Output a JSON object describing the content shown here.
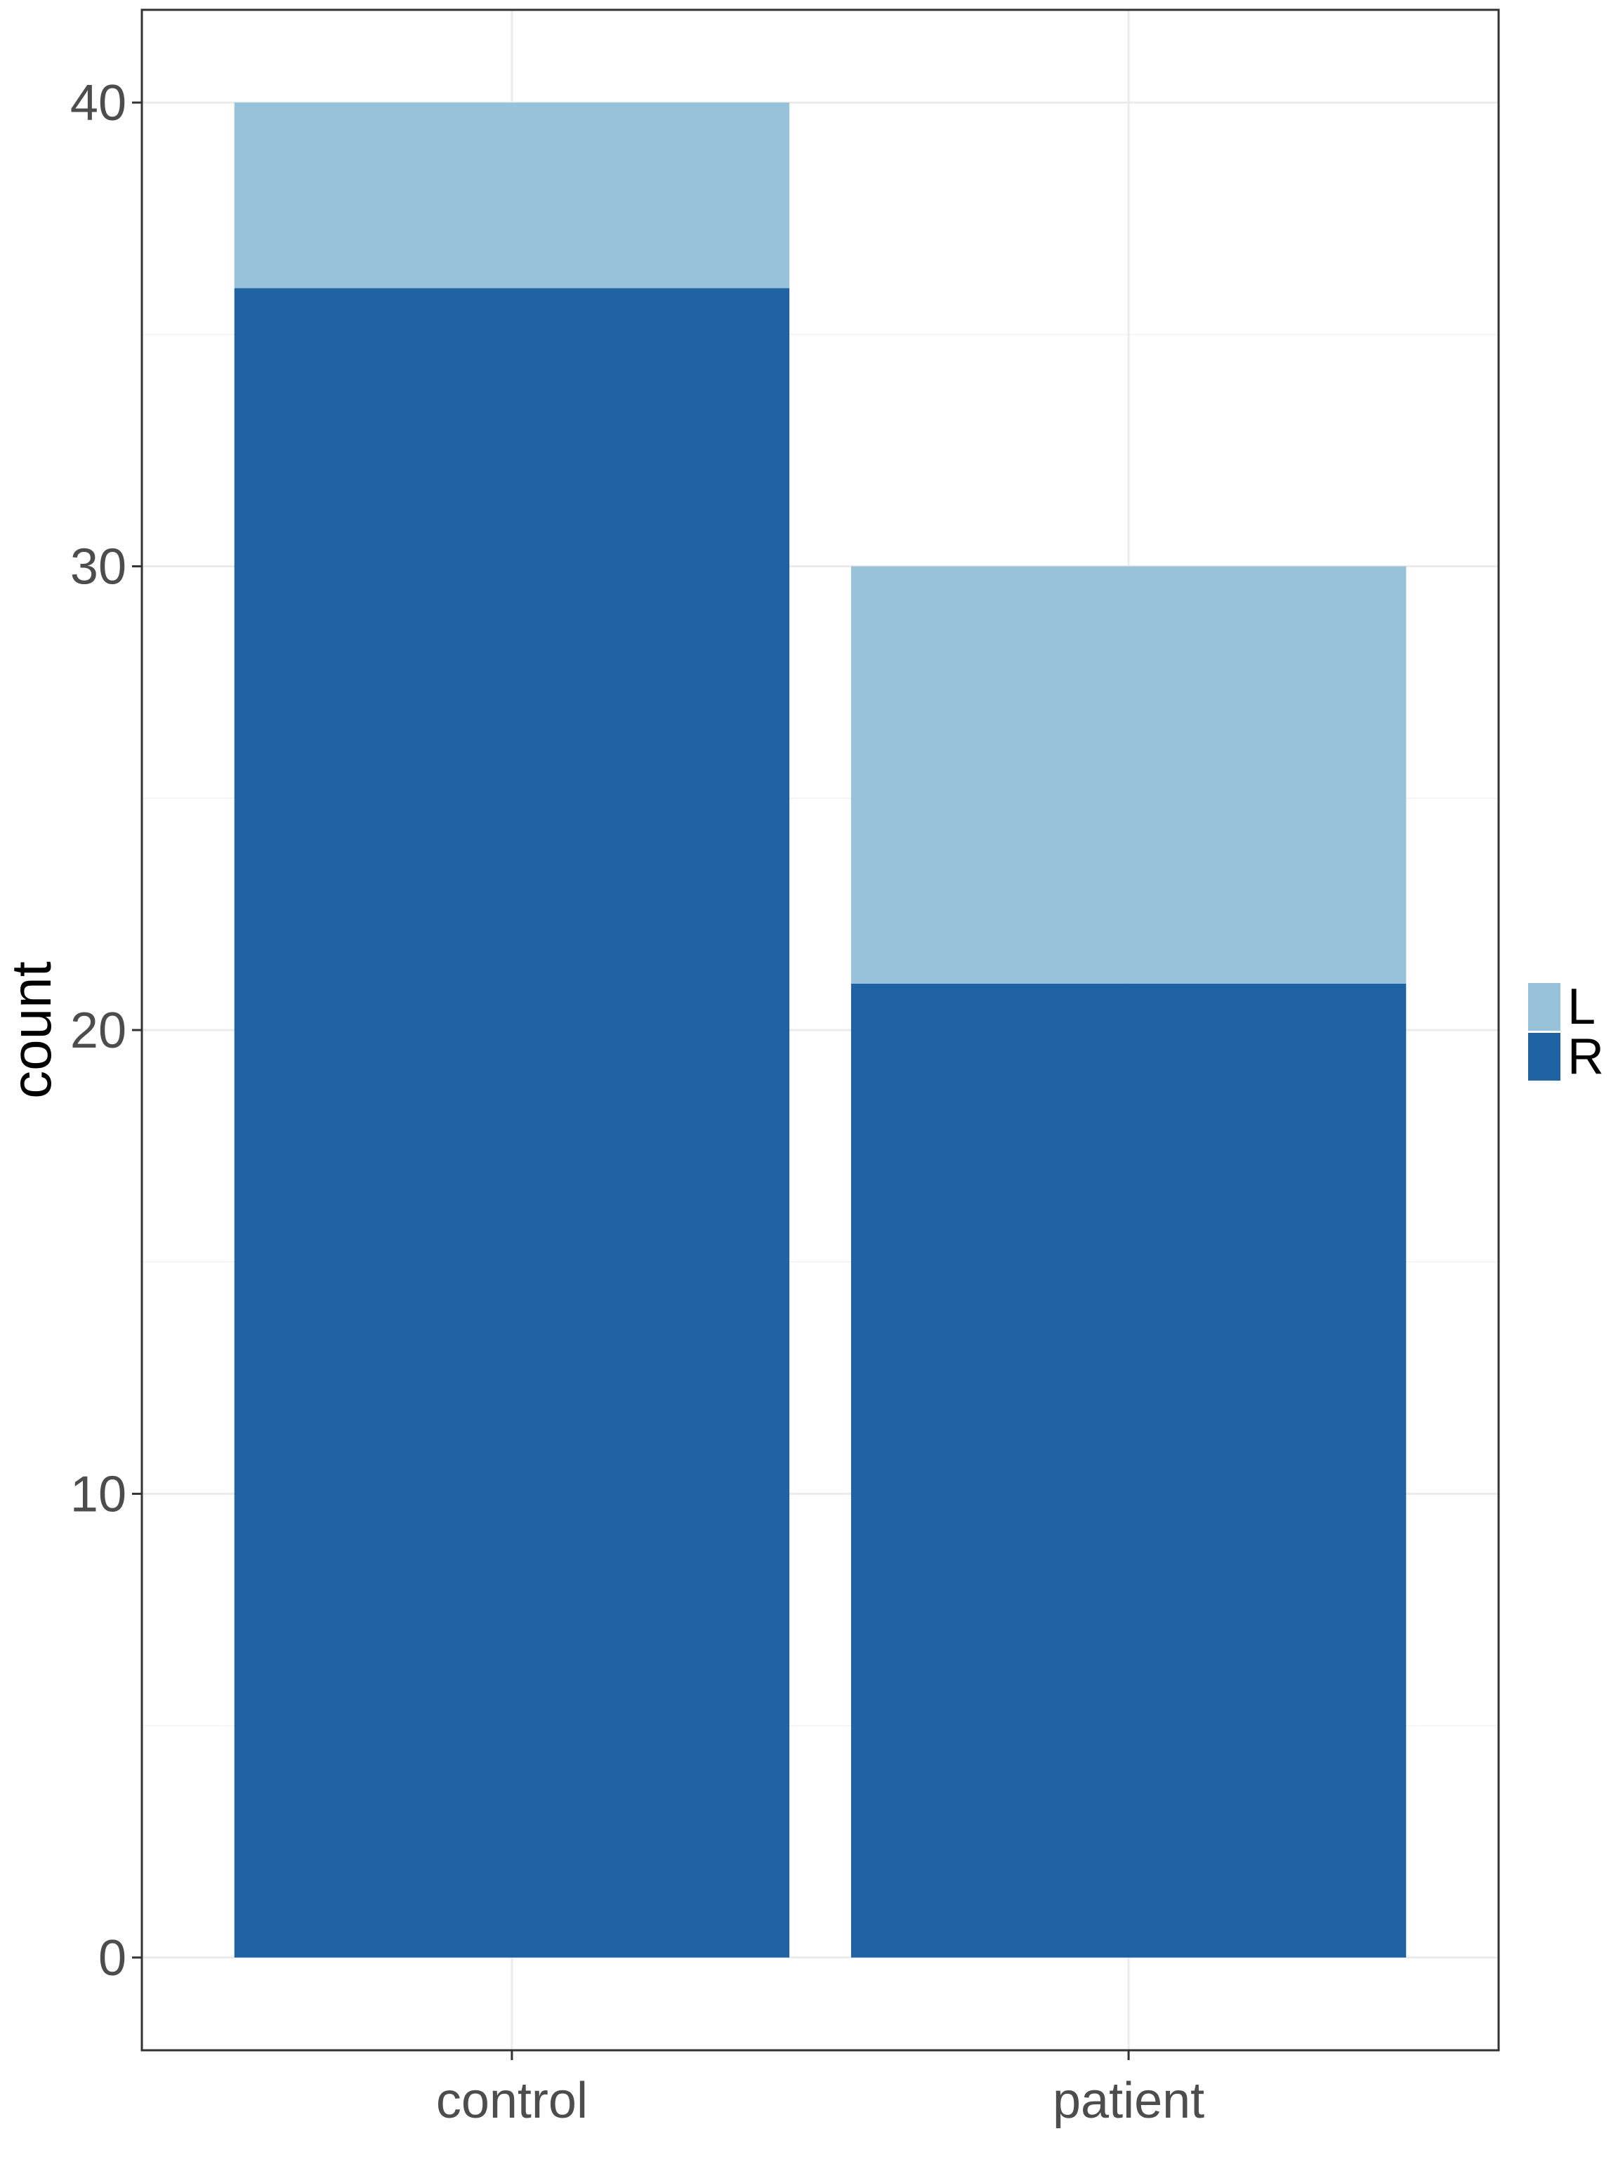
{
  "chart_data": {
    "type": "bar",
    "stacked": true,
    "categories": [
      "control",
      "patient"
    ],
    "series": [
      {
        "name": "R",
        "values": [
          36,
          21
        ],
        "color": "#1f63a4"
      },
      {
        "name": "L",
        "values": [
          4,
          9
        ],
        "color": "#97c2da"
      }
    ],
    "title": "",
    "xlabel": "",
    "ylabel": "count",
    "ylim": [
      -2,
      42
    ],
    "yticks": [
      0,
      10,
      20,
      30,
      40
    ],
    "ytick_labels": [
      "0",
      "10",
      "20",
      "30",
      "40"
    ],
    "grid": true,
    "legend": {
      "position": "right",
      "entries": [
        {
          "label": "L",
          "color": "#97c2da"
        },
        {
          "label": "R",
          "color": "#1f63a4"
        }
      ]
    }
  }
}
